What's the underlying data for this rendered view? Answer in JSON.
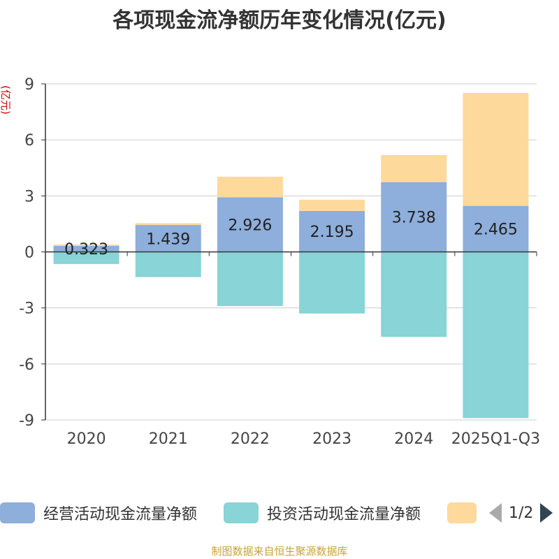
{
  "chart_data": {
    "type": "bar",
    "stacked": true,
    "title": "各项现金流净额历年变化情况(亿元)",
    "ylabel": "(亿元)",
    "xlabel": "",
    "ylim": [
      -9,
      9
    ],
    "yticks": [
      9,
      6,
      3,
      0,
      -3,
      -6,
      -9
    ],
    "yticks_display": [
      "9",
      "6",
      "3",
      "0",
      "-3",
      "-6",
      "-9"
    ],
    "categories": [
      "2020",
      "2021",
      "2022",
      "2023",
      "2024",
      "2025Q1-Q3"
    ],
    "series": [
      {
        "name": "经营活动现金流量净额",
        "color": "#8eaedb",
        "values": [
          0.323,
          1.439,
          2.926,
          2.195,
          3.738,
          2.465
        ],
        "labels": [
          "0.323",
          "1.439",
          "2.926",
          "2.195",
          "3.738",
          "2.465"
        ]
      },
      {
        "name": "投资活动现金流量净额",
        "color": "#88d4d6",
        "values": [
          -0.65,
          -1.35,
          -2.9,
          -3.3,
          -4.55,
          -8.9
        ]
      },
      {
        "name": "",
        "color": "#fdd99b",
        "values": [
          0.07,
          0.1,
          1.1,
          0.6,
          1.45,
          6.05
        ]
      }
    ],
    "legend_position": "bottom",
    "grid": true
  },
  "legend": {
    "page": "1/2"
  },
  "source": "制图数据来自恒生聚源数据库"
}
